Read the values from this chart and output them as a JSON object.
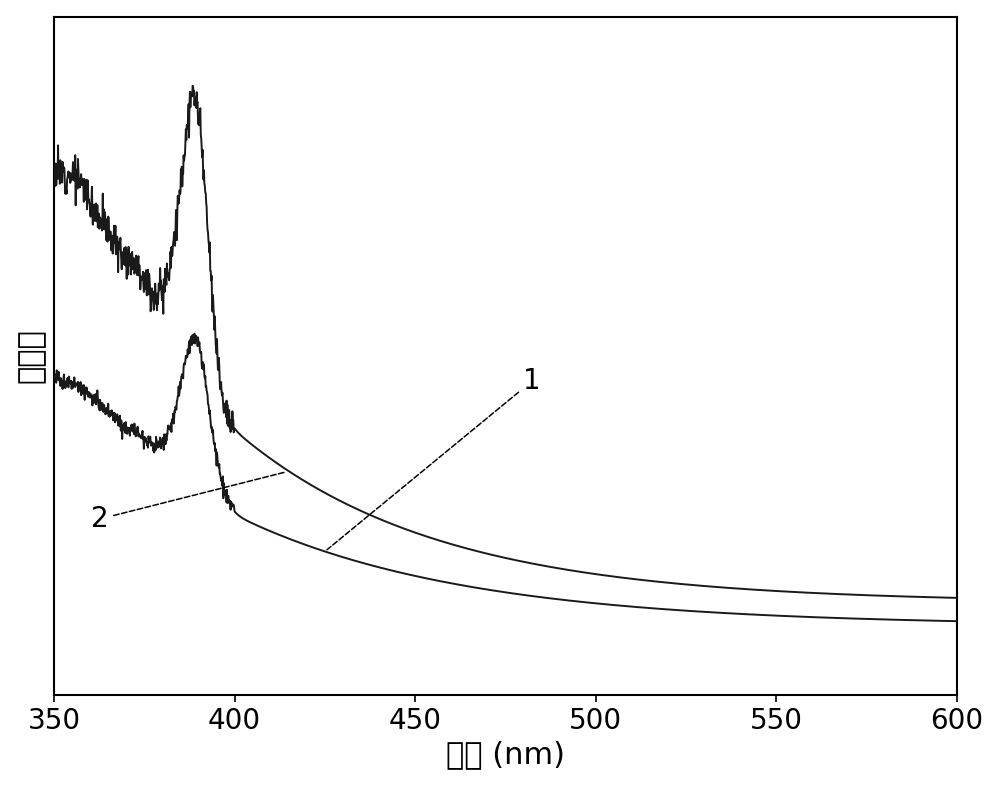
{
  "xlabel": "波长 (nm)",
  "ylabel": "吸光度",
  "xlim": [
    350,
    600
  ],
  "ylim": [
    0,
    1.08
  ],
  "x_ticks": [
    350,
    400,
    450,
    500,
    550,
    600
  ],
  "line_color": "#1a1a1a",
  "xlabel_fontsize": 22,
  "ylabel_fontsize": 22,
  "tick_fontsize": 20,
  "label_fontsize": 20,
  "figsize": [
    10.0,
    7.86
  ],
  "dpi": 100
}
